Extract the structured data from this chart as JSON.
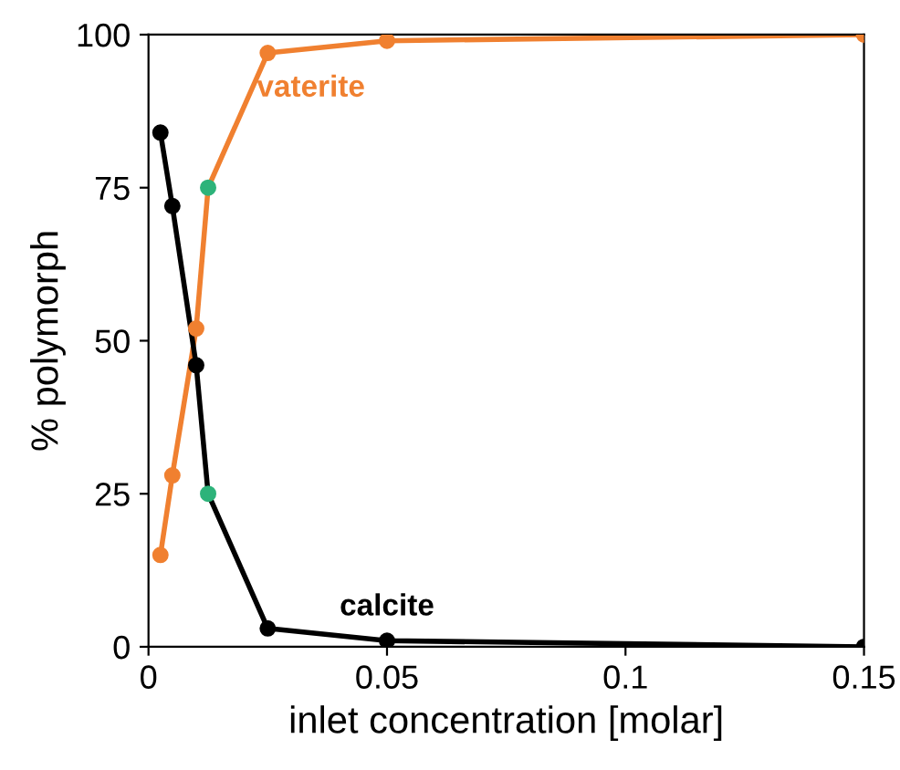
{
  "chart_data": {
    "type": "line",
    "xlabel": "inlet concentration [molar]",
    "ylabel": "% polymorph",
    "xlim": [
      0,
      0.15
    ],
    "ylim": [
      0,
      100
    ],
    "xticks": [
      0,
      0.05,
      0.1,
      0.15
    ],
    "yticks": [
      0,
      25,
      50,
      75,
      100
    ],
    "grid": false,
    "legend": false,
    "marker": "circle",
    "line_style": "solid",
    "series": [
      {
        "name": "vaterite",
        "color": "#f08030",
        "x": [
          0.0025,
          0.005,
          0.01,
          0.0125,
          0.025,
          0.05,
          0.15
        ],
        "values": [
          15,
          28,
          52,
          75,
          97,
          99,
          100
        ],
        "colors": [
          "#f08030",
          "#f08030",
          "#f08030",
          "#2db37a",
          "#f08030",
          "#f08030",
          "#f08030"
        ]
      },
      {
        "name": "calcite",
        "color": "#000000",
        "x": [
          0.0025,
          0.005,
          0.01,
          0.0125,
          0.025,
          0.05,
          0.15
        ],
        "values": [
          84,
          72,
          46,
          25,
          3,
          1,
          0
        ],
        "colors": [
          "#000000",
          "#000000",
          "#000000",
          "#2db37a",
          "#000000",
          "#000000",
          "#000000"
        ]
      }
    ]
  }
}
